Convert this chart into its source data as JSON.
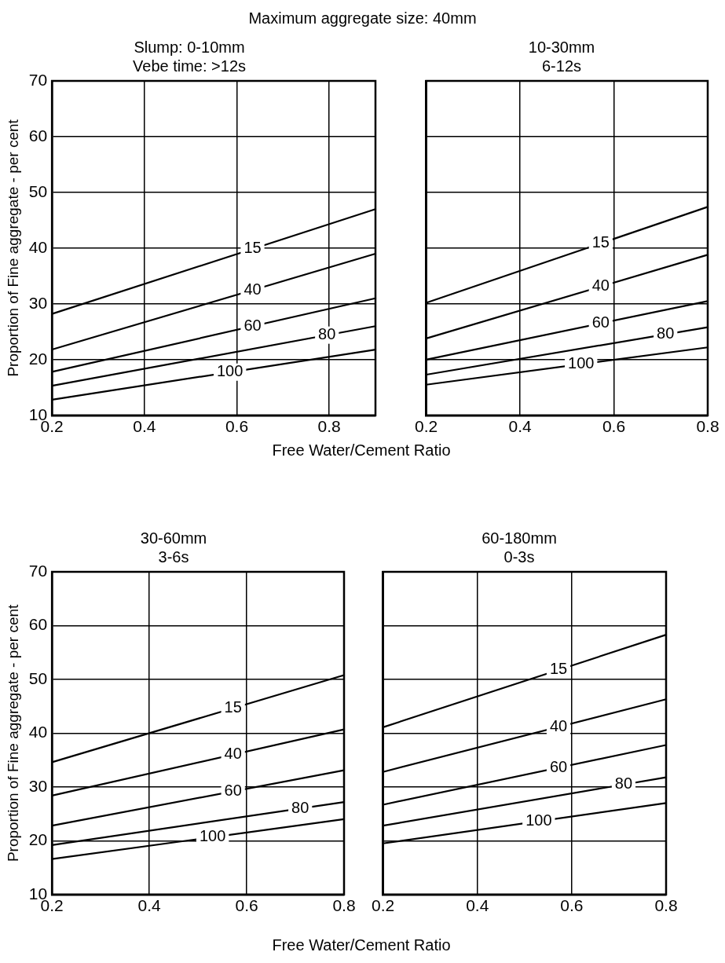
{
  "chart_data": [
    {
      "type": "line",
      "title": "Maximum aggregate size: 40mm",
      "subtitle": "Slump: 0-10mm\nVebe time: >12s",
      "xlabel": "Free Water/Cement Ratio",
      "ylabel": "Proportion of Fine aggregate - per cent",
      "x": [
        0.2,
        0.9
      ],
      "xlim": [
        0.2,
        0.9
      ],
      "xticks": [
        0.2,
        0.4,
        0.6,
        0.8
      ],
      "ylim": [
        10,
        70
      ],
      "yticks": [
        10,
        20,
        30,
        40,
        50,
        60,
        70
      ],
      "grid": true,
      "marker": "none",
      "line_style": "solid",
      "series": [
        {
          "name": "15",
          "color": "#000000",
          "values": [
            28.2,
            47
          ]
        },
        {
          "name": "40",
          "color": "#000000",
          "values": [
            21.8,
            39
          ]
        },
        {
          "name": "60",
          "color": "#000000",
          "values": [
            17.8,
            31
          ]
        },
        {
          "name": "80",
          "color": "#000000",
          "values": [
            15.3,
            26
          ]
        },
        {
          "name": "100",
          "color": "#000000",
          "values": [
            12.8,
            21.8
          ]
        }
      ]
    },
    {
      "type": "line",
      "subtitle": "10-30mm\n6-12s",
      "x": [
        0.2,
        0.8
      ],
      "xlim": [
        0.2,
        0.8
      ],
      "xticks": [
        0.2,
        0.4,
        0.6,
        0.8
      ],
      "ylim": [
        10,
        70
      ],
      "yticks": [
        10,
        20,
        30,
        40,
        50,
        60,
        70
      ],
      "tick_labels": "x",
      "grid": true,
      "marker": "none",
      "line_style": "solid",
      "series": [
        {
          "name": "15",
          "color": "#000000",
          "values": [
            30.2,
            47.4
          ]
        },
        {
          "name": "40",
          "color": "#000000",
          "values": [
            23.8,
            38.8
          ]
        },
        {
          "name": "60",
          "color": "#000000",
          "values": [
            20,
            30.5
          ]
        },
        {
          "name": "80",
          "color": "#000000",
          "values": [
            17.3,
            25.8
          ]
        },
        {
          "name": "100",
          "color": "#000000",
          "values": [
            15.5,
            22.2
          ]
        }
      ]
    },
    {
      "type": "line",
      "subtitle": "30-60mm\n3-6s",
      "xlabel": "Free Water/Cement Ratio",
      "ylabel": "Proportion of Fine aggregate - per cent",
      "x": [
        0.2,
        0.8
      ],
      "xlim": [
        0.2,
        0.8
      ],
      "xticks": [
        0.2,
        0.4,
        0.6,
        0.8
      ],
      "ylim": [
        10,
        70
      ],
      "yticks": [
        10,
        20,
        30,
        40,
        50,
        60,
        70
      ],
      "grid": true,
      "marker": "none",
      "line_style": "solid",
      "series": [
        {
          "name": "15",
          "color": "#000000",
          "values": [
            34.6,
            50.8
          ]
        },
        {
          "name": "40",
          "color": "#000000",
          "values": [
            28.4,
            40.7
          ]
        },
        {
          "name": "60",
          "color": "#000000",
          "values": [
            22.8,
            33.1
          ]
        },
        {
          "name": "80",
          "color": "#000000",
          "values": [
            19.2,
            27.2
          ]
        },
        {
          "name": "100",
          "color": "#000000",
          "values": [
            16.6,
            24
          ]
        }
      ]
    },
    {
      "type": "line",
      "subtitle": "60-180mm\n0-3s",
      "x": [
        0.2,
        0.8
      ],
      "xlim": [
        0.2,
        0.8
      ],
      "xticks": [
        0.2,
        0.4,
        0.6,
        0.8
      ],
      "ylim": [
        10,
        70
      ],
      "yticks": [
        10,
        20,
        30,
        40,
        50,
        60,
        70
      ],
      "tick_labels": "x",
      "grid": true,
      "marker": "none",
      "line_style": "solid",
      "series": [
        {
          "name": "15",
          "color": "#000000",
          "values": [
            41.1,
            58.3
          ]
        },
        {
          "name": "40",
          "color": "#000000",
          "values": [
            32.8,
            46.3
          ]
        },
        {
          "name": "60",
          "color": "#000000",
          "values": [
            26.7,
            37.8
          ]
        },
        {
          "name": "80",
          "color": "#000000",
          "values": [
            22.8,
            31.8
          ]
        },
        {
          "name": "100",
          "color": "#000000",
          "values": [
            19.5,
            27
          ]
        }
      ]
    }
  ]
}
